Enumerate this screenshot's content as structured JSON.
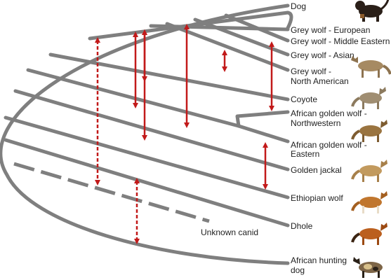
{
  "colors": {
    "branch": "#7f7f7f",
    "gene_flow": "#c21a1a",
    "label": "#222222"
  },
  "taxa": [
    {
      "id": "dog",
      "lines": [
        "Dog"
      ],
      "thumbnail": "black-tan-dog-icon",
      "thumbnail_color": "#2a1f18"
    },
    {
      "id": "grey-wolf-european",
      "lines": [
        "Grey wolf - European"
      ]
    },
    {
      "id": "grey-wolf-middle-eastern",
      "lines": [
        "Grey wolf - Middle Eastern"
      ]
    },
    {
      "id": "grey-wolf-asian",
      "lines": [
        "Grey wolf - Asian"
      ]
    },
    {
      "id": "grey-wolf-north-american",
      "lines": [
        "Grey wolf -",
        "North American"
      ],
      "thumbnail": "grey-wolf-icon",
      "thumbnail_color": "#a68a62"
    },
    {
      "id": "coyote",
      "lines": [
        "Coyote"
      ],
      "thumbnail": "coyote-icon",
      "thumbnail_color": "#a08e72"
    },
    {
      "id": "african-golden-wolf-northwestern",
      "lines": [
        "African golden wolf -",
        "Northwestern"
      ],
      "thumbnail": "golden-wolf-icon",
      "thumbnail_color": "#9a7440"
    },
    {
      "id": "african-golden-wolf-eastern",
      "lines": [
        "African golden wolf -",
        "Eastern"
      ]
    },
    {
      "id": "golden-jackal",
      "lines": [
        "Golden jackal"
      ],
      "thumbnail": "golden-jackal-icon",
      "thumbnail_color": "#c29a5e"
    },
    {
      "id": "ethiopian-wolf",
      "lines": [
        "Ethiopian wolf"
      ],
      "thumbnail": "ethiopian-wolf-icon",
      "thumbnail_color": "#c0762e"
    },
    {
      "id": "dhole",
      "lines": [
        "Dhole"
      ],
      "thumbnail": "dhole-icon",
      "thumbnail_color": "#bb5f1e"
    },
    {
      "id": "african-hunting-dog",
      "lines": [
        "African hunting",
        "dog"
      ],
      "thumbnail": "african-hunting-dog-icon",
      "thumbnail_color": "#7d6547"
    }
  ],
  "ghost_lineage": {
    "label": "Unknown canid"
  },
  "gene_flow": [
    {
      "from": "grey-wolf-middle-eastern",
      "to": "golden-jackal",
      "style": "solid"
    },
    {
      "from": "grey-wolf-european",
      "to": "coyote",
      "style": "solid"
    },
    {
      "from": "grey-wolf-european",
      "to": "african-golden-wolf-northwestern",
      "style": "solid"
    },
    {
      "from": "grey-wolf-middle-eastern",
      "to": "african-golden-wolf-northwestern",
      "style": "solid"
    },
    {
      "from": "grey-wolf-asian",
      "to": "grey-wolf-north-american",
      "style": "solid"
    },
    {
      "from": "grey-wolf-asian",
      "to": "african-golden-wolf-northwestern",
      "style": "solid"
    },
    {
      "from": "african-golden-wolf-eastern",
      "to": "ethiopian-wolf",
      "style": "solid"
    },
    {
      "from": "grey-wolf-european",
      "to": "unknown-canid",
      "style": "dashed"
    },
    {
      "from": "unknown-canid",
      "to": "african-hunting-dog",
      "style": "dashed"
    }
  ]
}
